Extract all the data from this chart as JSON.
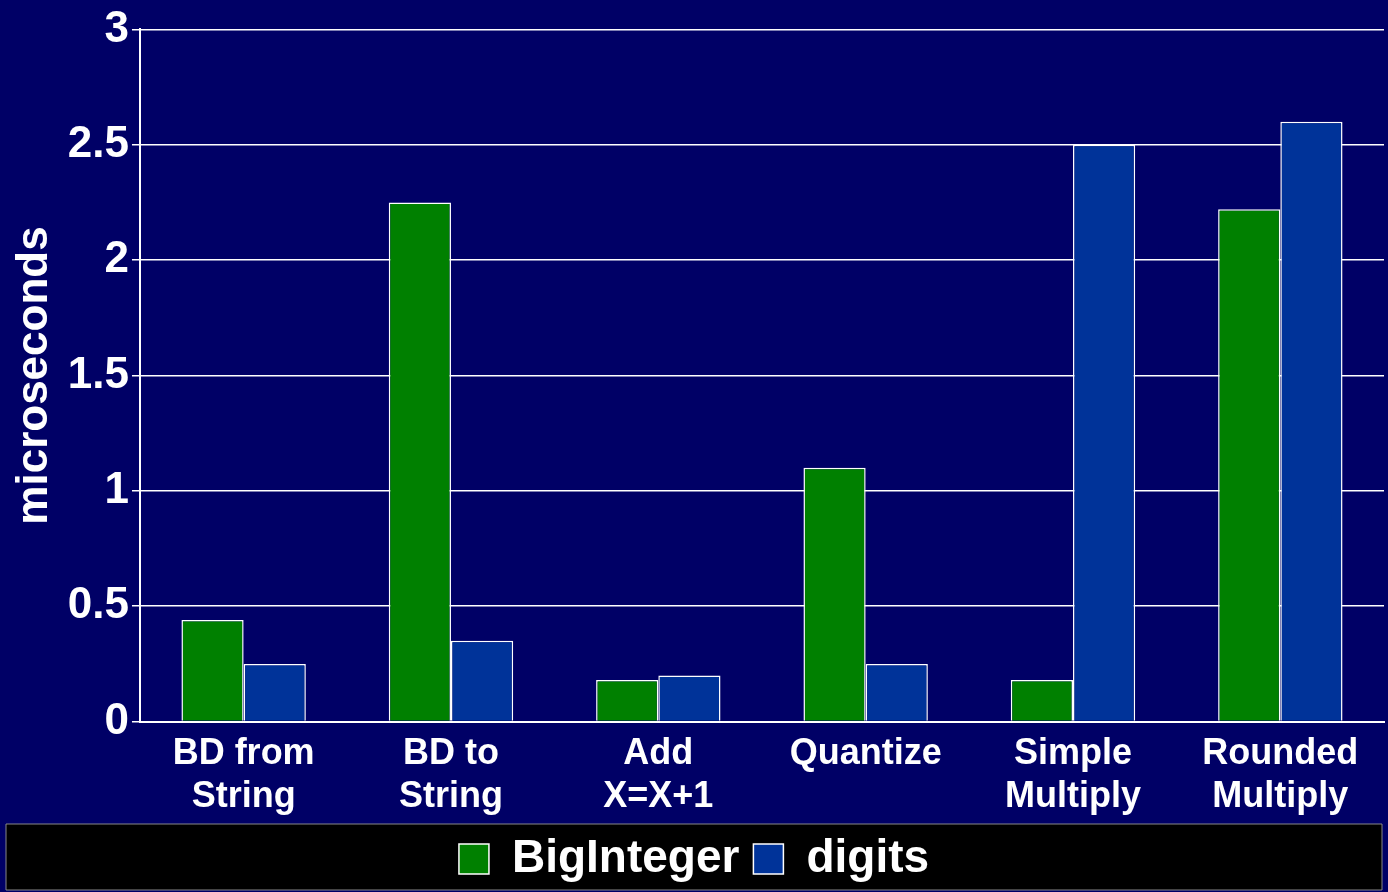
{
  "chart_data": {
    "type": "bar",
    "ylabel": "microseconds",
    "categories": [
      "BD from\nString",
      "BD to\nString",
      "Add\nX=X+1",
      "Quantize",
      "Simple\nMultiply",
      "Rounded\nMultiply"
    ],
    "series": [
      {
        "name": "BigInteger",
        "color": "#008000",
        "values": [
          0.44,
          2.25,
          0.18,
          1.1,
          0.18,
          2.22
        ]
      },
      {
        "name": "digits",
        "color": "#003399",
        "values": [
          0.25,
          0.35,
          0.2,
          0.25,
          2.5,
          2.6
        ]
      }
    ],
    "ylim": [
      0,
      3
    ],
    "yticks": [
      0,
      0.5,
      1,
      1.5,
      2,
      2.5,
      3
    ],
    "grid": "y",
    "legend": "bottom"
  }
}
